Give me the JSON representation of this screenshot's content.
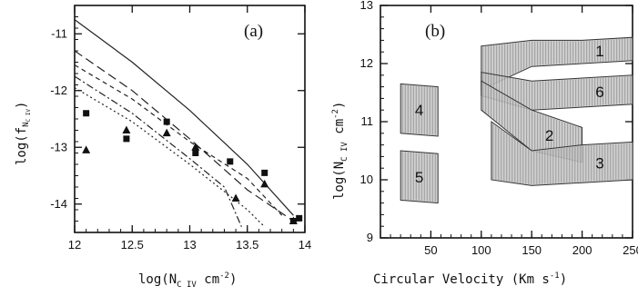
{
  "chart_data": [
    {
      "panel_label": "(a)",
      "type": "scatter",
      "xlabel": "log(N_C IV cm^-2)",
      "ylabel": "log(f_N_C IV)",
      "xlim": [
        12,
        14
      ],
      "ylim": [
        -14.5,
        -10.5
      ],
      "xticks": [
        "12",
        "12.5",
        "13",
        "13.5",
        "14"
      ],
      "yticks": [
        "-11",
        "-12",
        "-13",
        "-14"
      ],
      "series": [
        {
          "marker": "square",
          "x": [
            12.1,
            12.45,
            12.8,
            13.05,
            13.35,
            13.65,
            13.9,
            13.95
          ],
          "y": [
            -12.4,
            -12.85,
            -12.55,
            -13.1,
            -13.25,
            -13.45,
            -14.3,
            -14.25
          ]
        },
        {
          "marker": "triangle",
          "x": [
            12.1,
            12.45,
            12.8,
            13.05,
            13.4,
            13.65,
            13.9
          ],
          "y": [
            -13.05,
            -12.7,
            -12.75,
            -13.0,
            -13.9,
            -13.65,
            -14.3
          ]
        },
        {
          "line": "solid",
          "x": [
            12,
            12.5,
            13,
            13.5,
            13.9
          ],
          "y": [
            -10.75,
            -11.5,
            -12.35,
            -13.3,
            -14.2
          ]
        },
        {
          "line": "long-dash",
          "x": [
            12,
            12.5,
            13,
            13.5,
            13.9
          ],
          "y": [
            -11.3,
            -12.0,
            -12.85,
            -13.75,
            -14.3
          ]
        },
        {
          "line": "short-dash",
          "x": [
            12,
            12.5,
            13,
            13.5,
            13.8
          ],
          "y": [
            -11.55,
            -12.15,
            -12.9,
            -13.55,
            -14.2
          ]
        },
        {
          "line": "dot-dash",
          "x": [
            12,
            12.5,
            13,
            13.3,
            13.45
          ],
          "y": [
            -11.75,
            -12.4,
            -13.2,
            -13.7,
            -14.4
          ]
        },
        {
          "line": "dotted",
          "x": [
            12,
            12.5,
            13,
            13.5,
            13.65
          ],
          "y": [
            -11.95,
            -12.55,
            -13.3,
            -14.1,
            -14.4
          ]
        }
      ]
    },
    {
      "panel_label": "(b)",
      "type": "area",
      "xlabel": "Circular Velocity (Km s^-1)",
      "ylabel": "log(N_C IV cm^-2)",
      "xlim": [
        0,
        250
      ],
      "ylim": [
        9,
        13
      ],
      "xticks": [
        "50",
        "100",
        "150",
        "200",
        "250"
      ],
      "yticks": [
        "9",
        "10",
        "11",
        "12",
        "13"
      ],
      "bands": [
        {
          "label": "1",
          "x": [
            100,
            150,
            200,
            250
          ],
          "y_low": [
            11.55,
            11.95,
            12.0,
            12.05
          ],
          "y_high": [
            12.3,
            12.4,
            12.4,
            12.45
          ]
        },
        {
          "label": "6",
          "x": [
            100,
            150,
            200,
            250
          ],
          "y_low": [
            11.45,
            11.2,
            11.25,
            11.3
          ],
          "y_high": [
            11.85,
            11.7,
            11.75,
            11.8
          ]
        },
        {
          "label": "2",
          "x": [
            100,
            150,
            200
          ],
          "y_low": [
            11.2,
            10.5,
            10.3
          ],
          "y_high": [
            11.7,
            11.2,
            10.9
          ]
        },
        {
          "label": "3",
          "x": [
            110,
            150,
            200,
            250
          ],
          "y_low": [
            10.0,
            9.9,
            9.95,
            10.0
          ],
          "y_high": [
            11.0,
            10.5,
            10.6,
            10.65
          ]
        },
        {
          "label": "4",
          "x": [
            20,
            57
          ],
          "y_low": [
            10.8,
            10.75
          ],
          "y_high": [
            11.65,
            11.6
          ]
        },
        {
          "label": "5",
          "x": [
            20,
            57
          ],
          "y_low": [
            9.65,
            9.6
          ],
          "y_high": [
            10.5,
            10.45
          ]
        }
      ]
    }
  ],
  "labels": {
    "a_y_main": "log(f",
    "a_y_sub": "N",
    "a_y_subsub": "C IV",
    "a_x_main": "log(N",
    "a_x_sub": "C IV",
    "a_x_unit": " cm",
    "a_x_exp": "-2",
    "b_y_main": "log(N",
    "b_y_sub": "C IV",
    "b_y_unit": " cm",
    "b_y_exp": "-2",
    "b_x_main": "Circular Velocity (Km s",
    "b_x_exp": "-1",
    "close": ")"
  }
}
